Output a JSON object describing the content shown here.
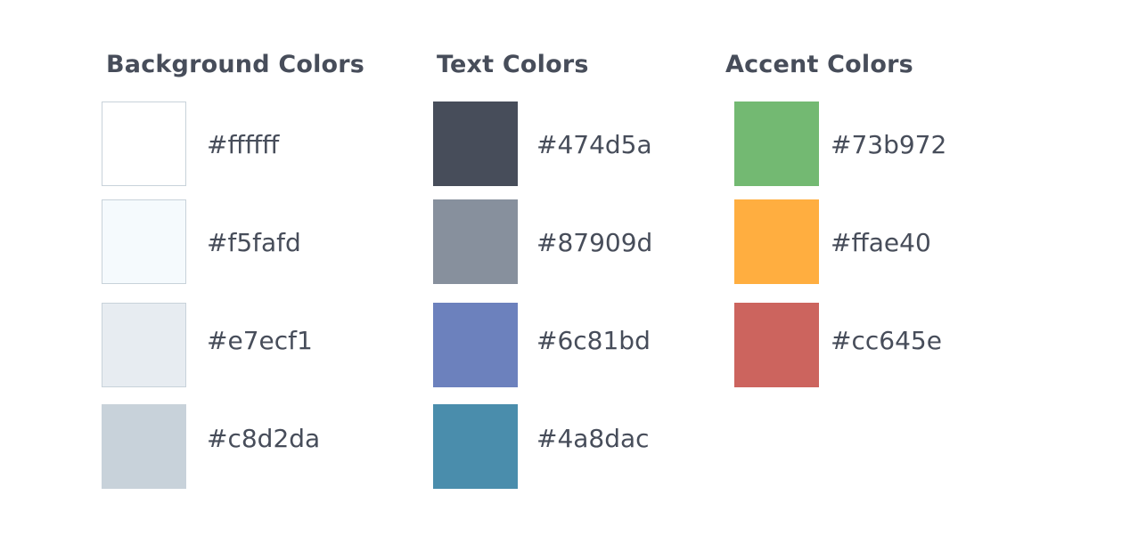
{
  "groups": [
    {
      "title": "Background Colors",
      "swatches": [
        {
          "hex": "#ffffff",
          "color": "#ffffff"
        },
        {
          "hex": "#f5fafd",
          "color": "#f5fafd"
        },
        {
          "hex": "#e7ecf1",
          "color": "#e7ecf1"
        },
        {
          "hex": "#c8d2da",
          "color": "#c8d2da"
        }
      ]
    },
    {
      "title": "Text Colors",
      "swatches": [
        {
          "hex": "#474d5a",
          "color": "#474d5a"
        },
        {
          "hex": "#87909d",
          "color": "#87909d"
        },
        {
          "hex": "#6c81bd",
          "color": "#6c81bd"
        },
        {
          "hex": "#4a8dac",
          "color": "#4a8dac"
        }
      ]
    },
    {
      "title": "Accent Colors",
      "swatches": [
        {
          "hex": "#73b972",
          "color": "#73b972"
        },
        {
          "hex": "#ffae40",
          "color": "#ffae40"
        },
        {
          "hex": "#cc645e",
          "color": "#cc645e"
        }
      ]
    }
  ]
}
